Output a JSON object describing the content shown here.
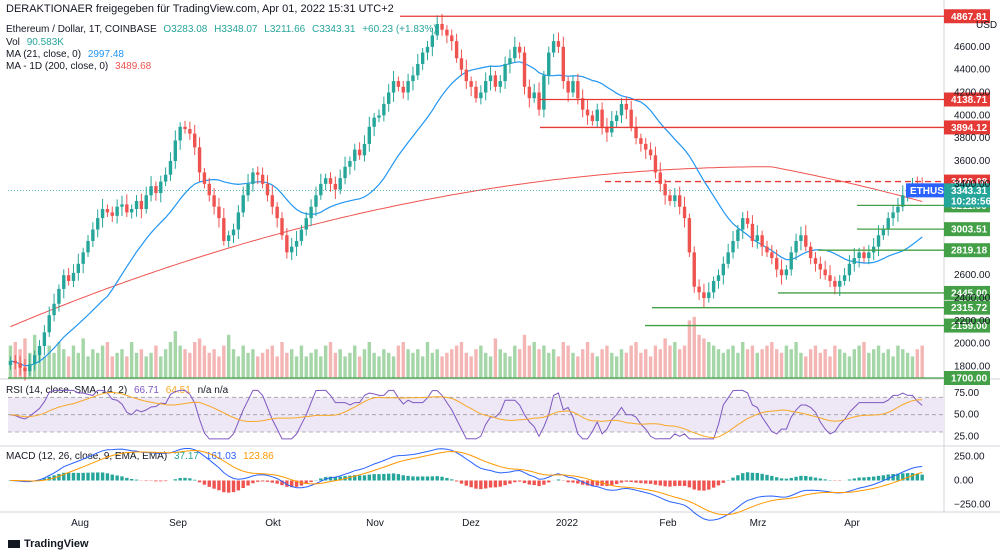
{
  "header": {
    "publisher": "DERAKTIONAER freigegeben für TradingView.com, Apr 01, 2022 15:31 UTC+2"
  },
  "legend": {
    "symbol": "Ethereum / Dollar, 1T, COINBASE",
    "o": "O3283.08",
    "h": "H3348.07",
    "l": "L3211.66",
    "c": "C3343.31",
    "chg": "+60.23 (+1.83%)",
    "vol_label": "Vol",
    "vol_value": "90.583K",
    "ma21_label": "MA (21, close, 0)",
    "ma21_value": "2997.48",
    "ma200_label": "MA - 1D (200, close, 0)",
    "ma200_value": "3489.68",
    "rsi_label": "RSI (14, close, SMA, 14, 2)",
    "rsi_v1": "66.71",
    "rsi_v2": "64.51",
    "rsi_na": "n/a n/a",
    "macd_label": "MACD (12, 26, close, 9, EMA, EMA)",
    "macd_v1": "37.17",
    "macd_v2": "161.03",
    "macd_v3": "123.86"
  },
  "currency": "USD",
  "brand": "TradingView",
  "colors": {
    "up": "#26a69a",
    "down": "#ef5350",
    "ma21": "#2196f3",
    "ma200": "#ef5350",
    "rsi": "#7e57c2",
    "rsi_sma": "#f9a825",
    "macd": "#2962ff",
    "signal": "#ff9800",
    "res": "#e53935",
    "sup": "#43a047",
    "tag_blue": "#2962ff"
  },
  "chart_data": {
    "type": "candlestick",
    "price_axis": {
      "ticks": [
        "4600.00",
        "4400.00",
        "4200.00",
        "4000.00",
        "3800.00",
        "3600.00",
        "3400.00",
        "2600.00",
        "2400.00",
        "2200.00",
        "2000.00",
        "1800.00"
      ],
      "range": [
        1700,
        4870
      ]
    },
    "x_ticks": [
      "Aug",
      "Sep",
      "Okt",
      "Nov",
      "Dez",
      "2022",
      "Feb",
      "Mrz",
      "Apr"
    ],
    "resistance": [
      {
        "label": "4867.81",
        "value": 4867.81
      },
      {
        "label": "4138.71",
        "value": 4138.71
      },
      {
        "label": "3894.12",
        "value": 3894.12
      },
      {
        "label": "3420.08",
        "value": 3420.08
      }
    ],
    "support": [
      {
        "label": "3211.66",
        "value": 3211.66
      },
      {
        "label": "3003.51",
        "value": 3003.51
      },
      {
        "label": "2819.18",
        "value": 2819.18
      },
      {
        "label": "2445.00",
        "value": 2445.0
      },
      {
        "label": "2315.72",
        "value": 2315.72
      },
      {
        "label": "2159.00",
        "value": 2159.0
      },
      {
        "label": "1700.00",
        "value": 1700.0
      }
    ],
    "current": {
      "symbol": "ETHUSD",
      "price": "3343.31",
      "countdown": "10:28:56"
    },
    "close_series": [
      1850,
      1830,
      1790,
      1760,
      1820,
      1900,
      1980,
      2100,
      2250,
      2350,
      2480,
      2600,
      2550,
      2620,
      2700,
      2800,
      2900,
      3000,
      3100,
      3180,
      3150,
      3120,
      3200,
      3220,
      3150,
      3180,
      3250,
      3180,
      3300,
      3380,
      3320,
      3420,
      3480,
      3600,
      3780,
      3900,
      3880,
      3840,
      3720,
      3500,
      3400,
      3300,
      3200,
      3100,
      2900,
      2950,
      3000,
      3150,
      3300,
      3400,
      3500,
      3480,
      3400,
      3300,
      3200,
      3100,
      2950,
      2800,
      2850,
      2900,
      3000,
      3100,
      3200,
      3300,
      3400,
      3450,
      3400,
      3350,
      3450,
      3550,
      3600,
      3700,
      3650,
      3750,
      3900,
      3980,
      4000,
      4100,
      4200,
      4300,
      4250,
      4200,
      4300,
      4350,
      4450,
      4550,
      4600,
      4700,
      4800,
      4750,
      4700,
      4650,
      4500,
      4400,
      4300,
      4250,
      4150,
      4200,
      4300,
      4350,
      4250,
      4300,
      4450,
      4500,
      4600,
      4550,
      4250,
      4150,
      4200,
      4050,
      4350,
      4550,
      4650,
      4600,
      4300,
      4200,
      4300,
      4150,
      4050,
      4000,
      3950,
      4050,
      3900,
      3850,
      3950,
      4000,
      4100,
      4050,
      3900,
      3800,
      3750,
      3700,
      3650,
      3500,
      3400,
      3300,
      3250,
      3300,
      3200,
      3100,
      2800,
      2500,
      2450,
      2400,
      2450,
      2550,
      2600,
      2700,
      2800,
      2900,
      3000,
      3100,
      3050,
      2900,
      2950,
      2850,
      2800,
      2750,
      2650,
      2600,
      2650,
      2800,
      2900,
      2950,
      2850,
      2750,
      2700,
      2650,
      2600,
      2550,
      2500,
      2550,
      2600,
      2700,
      2750,
      2800,
      2750,
      2800,
      2850,
      2950,
      3000,
      3100,
      3150,
      3200,
      3300,
      3350,
      3400,
      3380,
      3343
    ],
    "volume_scale": [
      0.45,
      0.5,
      0.4,
      0.55,
      0.35,
      0.6,
      0.4,
      0.3,
      0.45,
      0.35,
      0.5,
      0.4,
      0.3,
      0.45,
      0.35,
      0.55,
      0.3,
      0.4,
      0.35,
      0.45,
      0.5,
      0.3,
      0.35,
      0.4,
      0.3,
      0.5,
      0.35,
      0.4,
      0.3,
      0.35,
      0.45,
      0.3,
      0.4,
      0.5,
      0.65,
      0.45,
      0.4,
      0.35,
      0.5,
      0.55,
      0.45,
      0.35,
      0.4,
      0.3,
      0.45,
      0.6,
      0.4,
      0.3,
      0.45,
      0.35,
      0.4,
      0.3,
      0.35,
      0.4,
      0.45,
      0.3,
      0.5,
      0.35,
      0.4,
      0.3,
      0.45,
      0.3,
      0.35,
      0.4,
      0.3,
      0.45,
      0.5,
      0.35,
      0.4,
      0.3,
      0.35,
      0.45,
      0.3,
      0.4,
      0.5,
      0.35,
      0.3,
      0.4,
      0.35,
      0.3,
      0.45,
      0.5,
      0.4,
      0.35,
      0.4,
      0.3,
      0.5,
      0.35,
      0.4,
      0.3,
      0.35,
      0.4,
      0.45,
      0.5,
      0.35,
      0.3,
      0.4,
      0.45,
      0.35,
      0.3,
      0.55,
      0.4,
      0.35,
      0.3,
      0.45,
      0.4,
      0.6,
      0.45,
      0.5,
      0.4,
      0.45,
      0.35,
      0.4,
      0.3,
      0.5,
      0.45,
      0.35,
      0.3,
      0.4,
      0.5,
      0.35,
      0.3,
      0.4,
      0.45,
      0.35,
      0.3,
      0.4,
      0.35,
      0.45,
      0.5,
      0.35,
      0.4,
      0.3,
      0.45,
      0.4,
      0.55,
      0.45,
      0.5,
      0.4,
      0.45,
      0.8,
      0.85,
      0.6,
      0.55,
      0.5,
      0.45,
      0.4,
      0.35,
      0.4,
      0.45,
      0.35,
      0.5,
      0.4,
      0.45,
      0.35,
      0.4,
      0.45,
      0.5,
      0.4,
      0.35,
      0.45,
      0.4,
      0.5,
      0.35,
      0.3,
      0.4,
      0.45,
      0.35,
      0.4,
      0.3,
      0.45,
      0.4,
      0.35,
      0.3,
      0.4,
      0.45,
      0.5,
      0.35,
      0.4,
      0.45,
      0.35,
      0.4,
      0.3,
      0.45,
      0.4,
      0.35,
      0.3,
      0.4,
      0.45,
      0.35,
      0.3,
      0.4,
      0.35
    ],
    "rsi_axis": [
      "75.00",
      "50.00",
      "25.00"
    ],
    "macd_axis": [
      "250.00",
      "0.00",
      "−250.00"
    ]
  }
}
